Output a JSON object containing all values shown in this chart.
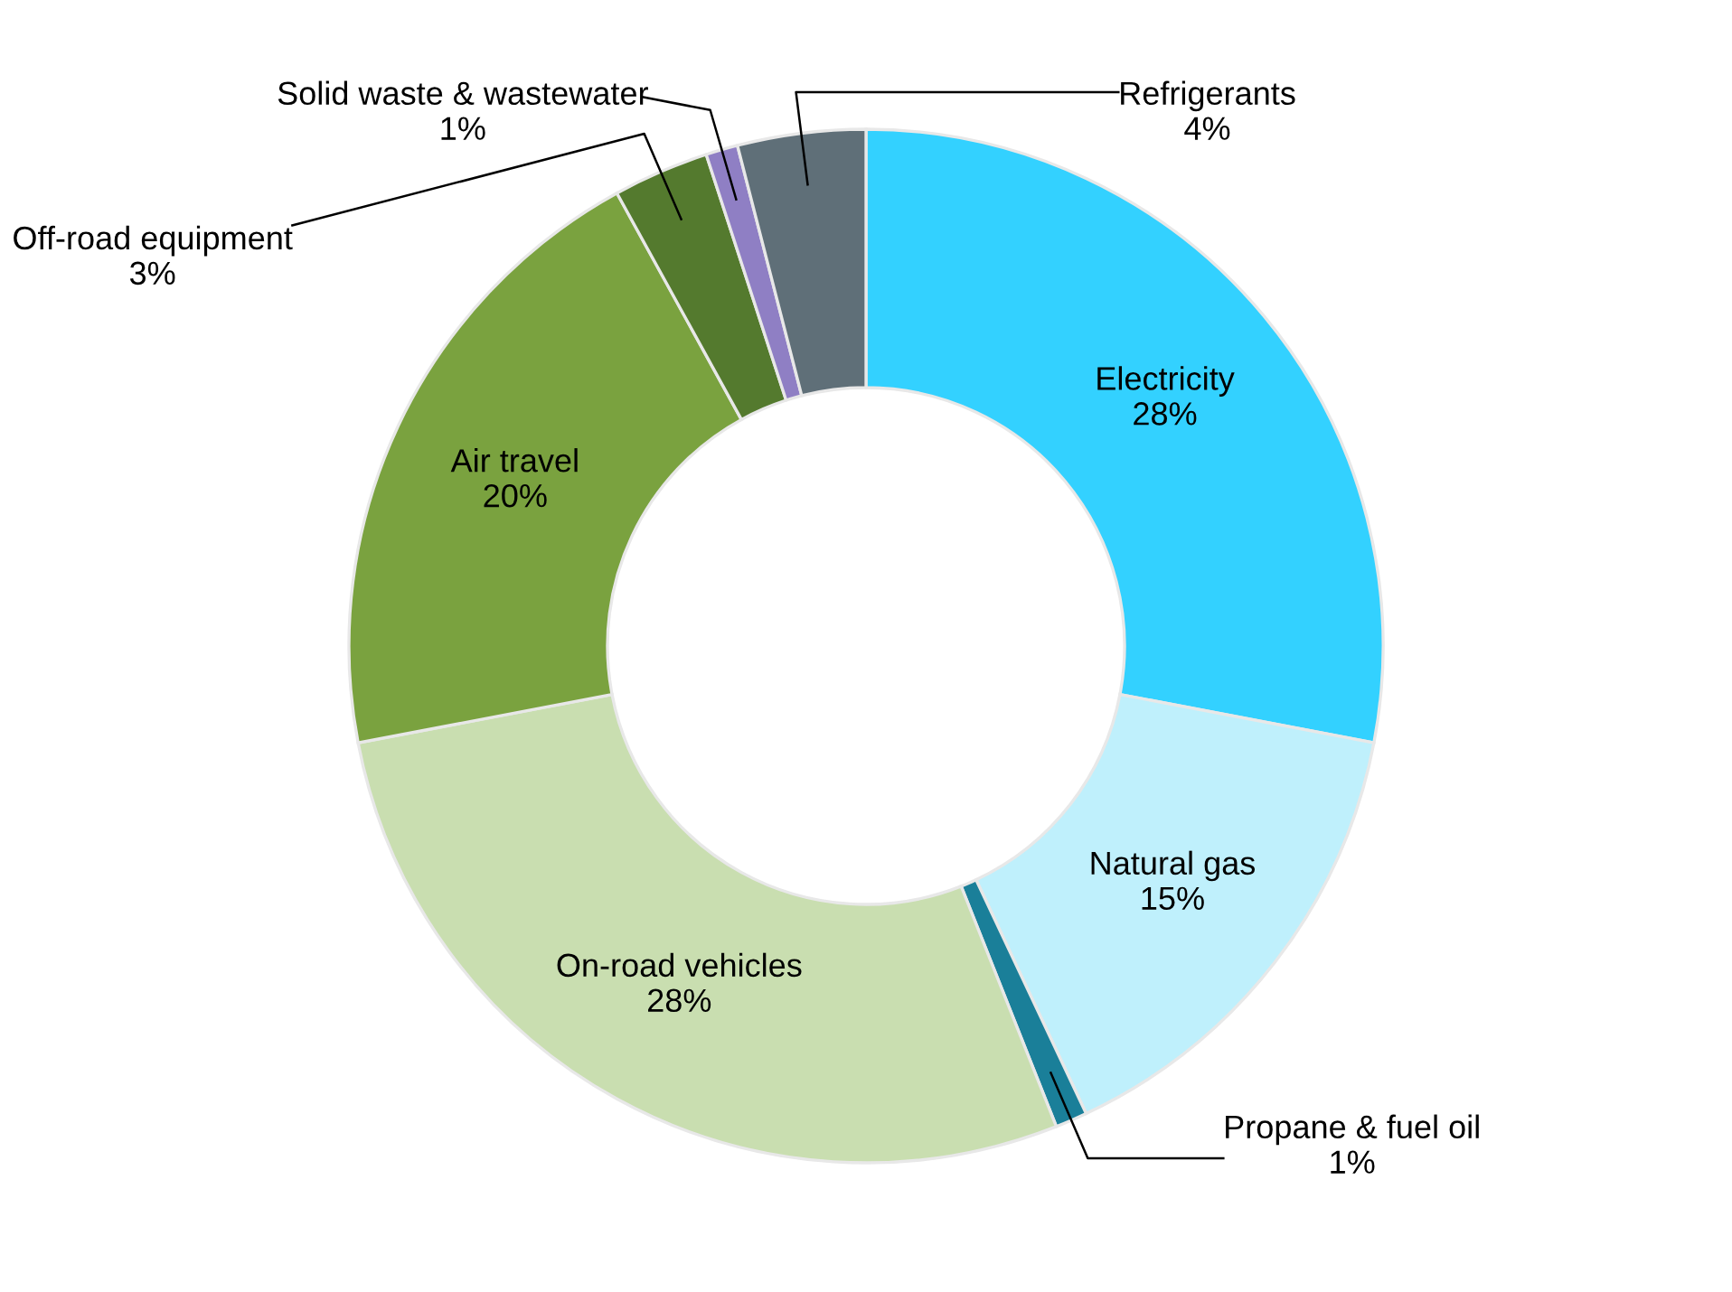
{
  "chart_data": {
    "type": "donut",
    "categories": [
      "Electricity",
      "Natural gas",
      "Propane & fuel oil",
      "On-road vehicles",
      "Air travel",
      "Off-road equipment",
      "Solid waste & wastewater",
      "Refrigerants"
    ],
    "values": [
      28,
      15,
      1,
      28,
      20,
      3,
      1,
      4
    ],
    "colors": [
      "#33d1ff",
      "#bff0fc",
      "#1a7f99",
      "#c9deb0",
      "#7aa23f",
      "#547a2e",
      "#8f7fc4",
      "#5f6f78"
    ],
    "value_labels": [
      "28%",
      "15%",
      "1%",
      "28%",
      "20%",
      "3%",
      "1%",
      "4%"
    ],
    "legend": false
  }
}
